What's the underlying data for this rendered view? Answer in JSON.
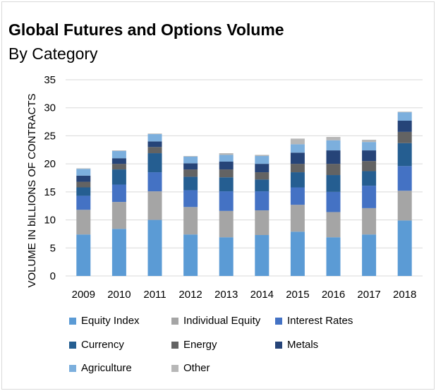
{
  "chart_data": {
    "type": "bar",
    "stacked": true,
    "title": "Global Futures and Options Volume",
    "subtitle": "By Category",
    "xlabel": "",
    "ylabel": "VOLUME IN bILLIONS OF CONTRACTS",
    "ylim": [
      0,
      35
    ],
    "yticks": [
      0,
      5,
      10,
      15,
      20,
      25,
      30,
      35
    ],
    "grid": true,
    "legend_position": "bottom",
    "categories": [
      "2009",
      "2010",
      "2011",
      "2012",
      "2013",
      "2014",
      "2015",
      "2016",
      "2017",
      "2018"
    ],
    "series": [
      {
        "name": "Equity Index",
        "color": "#5B9BD5",
        "values": [
          7.4,
          8.4,
          10.0,
          7.4,
          6.9,
          7.3,
          7.9,
          6.9,
          7.4,
          9.9
        ]
      },
      {
        "name": "Individual Equity",
        "color": "#A5A5A5",
        "values": [
          4.4,
          4.8,
          5.1,
          4.9,
          4.7,
          4.4,
          4.8,
          4.5,
          4.7,
          5.3
        ]
      },
      {
        "name": "Interest Rates",
        "color": "#4472C4",
        "values": [
          2.5,
          3.1,
          3.4,
          3.0,
          3.5,
          3.4,
          3.1,
          3.6,
          4.0,
          4.4
        ]
      },
      {
        "name": "Currency",
        "color": "#255E91",
        "values": [
          1.5,
          2.7,
          3.4,
          2.4,
          2.5,
          2.1,
          2.7,
          3.0,
          2.6,
          4.1
        ]
      },
      {
        "name": "Energy",
        "color": "#636363",
        "values": [
          1.0,
          1.0,
          1.1,
          1.3,
          1.4,
          1.3,
          1.5,
          2.0,
          1.8,
          2.0
        ]
      },
      {
        "name": "Metals",
        "color": "#264478",
        "values": [
          1.1,
          1.0,
          1.0,
          1.1,
          1.4,
          1.5,
          2.0,
          2.4,
          1.9,
          2.0
        ]
      },
      {
        "name": "Agriculture",
        "color": "#7CAFDD",
        "values": [
          1.2,
          1.3,
          1.3,
          1.2,
          1.2,
          1.4,
          1.5,
          1.8,
          1.5,
          1.5
        ]
      },
      {
        "name": "Other",
        "color": "#B7B7B7",
        "values": [
          0.1,
          0.1,
          0.1,
          0.1,
          0.3,
          0.2,
          1.0,
          0.6,
          0.4,
          0.1
        ]
      }
    ]
  }
}
